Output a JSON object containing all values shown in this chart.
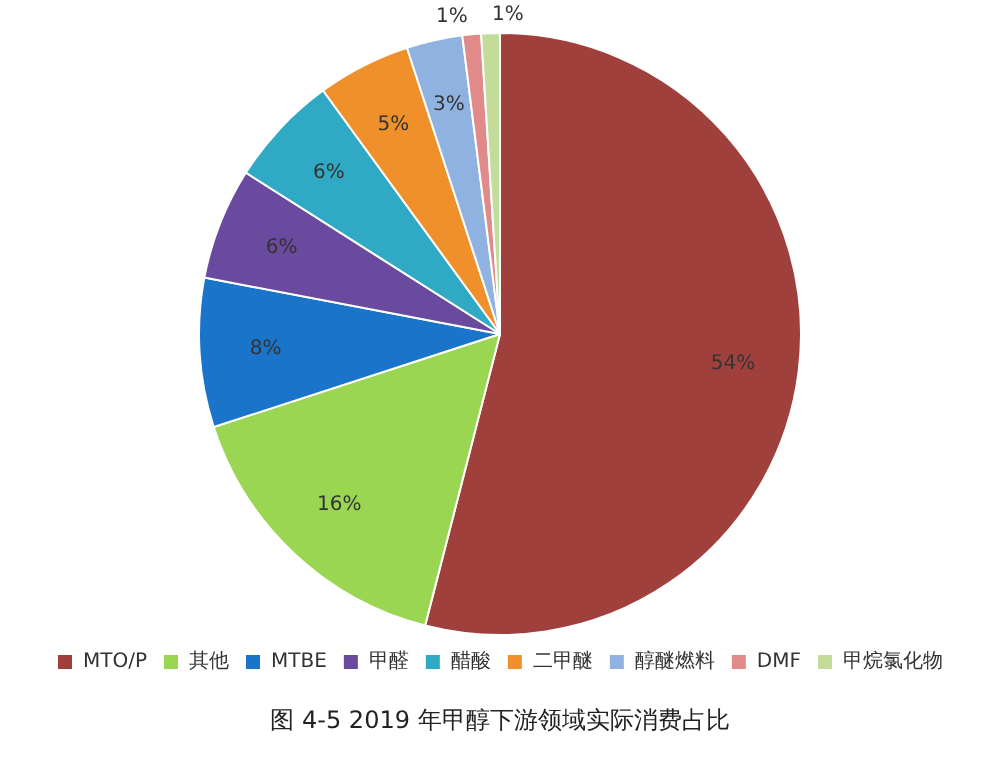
{
  "chart_data": {
    "type": "pie",
    "title": "图 4-5 2019 年甲醇下游领域实际消费占比",
    "categories": [
      "MTO/P",
      "其他",
      "MTBE",
      "甲醛",
      "醋酸",
      "二甲醚",
      "醇醚燃料",
      "DMF",
      "甲烷氯化物"
    ],
    "values": [
      54,
      16,
      8,
      6,
      6,
      5,
      3,
      1,
      1
    ],
    "colors": [
      "#a0403d",
      "#9bd653",
      "#1a74c9",
      "#6a4a9e",
      "#2fa9c4",
      "#f0902a",
      "#8fb2e0",
      "#e08a8a",
      "#c4dc9a"
    ],
    "value_labels": [
      "54%",
      "16%",
      "8%",
      "6%",
      "6%",
      "5%",
      "3%",
      "1%",
      "1%"
    ],
    "legend": "bottom"
  }
}
